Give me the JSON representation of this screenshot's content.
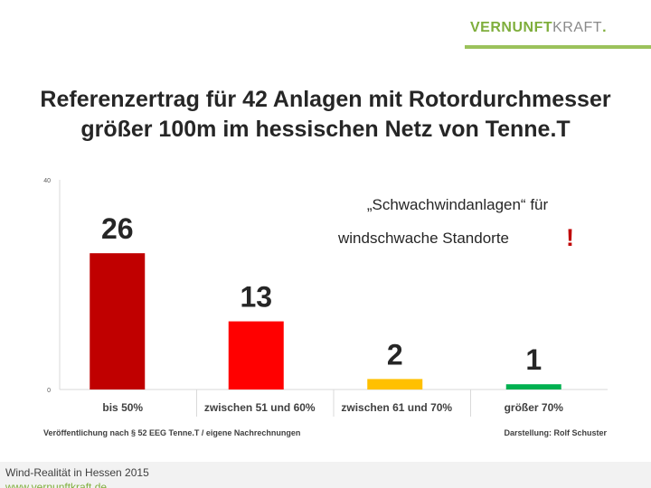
{
  "brand": {
    "part1": "VERNUNFT",
    "part2": "KRAFT",
    "part3": "."
  },
  "title": {
    "line1": "Referenzertrag für 42 Anlagen mit Rotordurchmesser",
    "line2": "größer 100m im hessischen Netz von Tenne.T"
  },
  "chart_data": {
    "type": "bar",
    "categories": [
      "bis 50%",
      "zwischen 51 und 60%",
      "zwischen 61 und 70%",
      "größer 70%"
    ],
    "values": [
      26,
      13,
      2,
      1
    ],
    "data_labels": [
      "26",
      "13",
      "2",
      "1"
    ],
    "colors": [
      "#c00000",
      "#ff0000",
      "#ffc000",
      "#00b050"
    ],
    "ylim": [
      0,
      40
    ],
    "ytick_labels": [
      "0",
      "40"
    ],
    "annotation": {
      "line1": "„Schwachwindanlagen“ für",
      "line2": "windschwache Standorte",
      "mark": "!"
    },
    "source_left": "Veröffentlichung nach § 52 EEG  Tenne.T /  eigene Nachrechnungen",
    "source_right": "Darstellung: Rolf Schuster"
  },
  "footer": {
    "text": "Wind-Realität in Hessen 2015",
    "url": "www.vernunftkraft.de"
  }
}
